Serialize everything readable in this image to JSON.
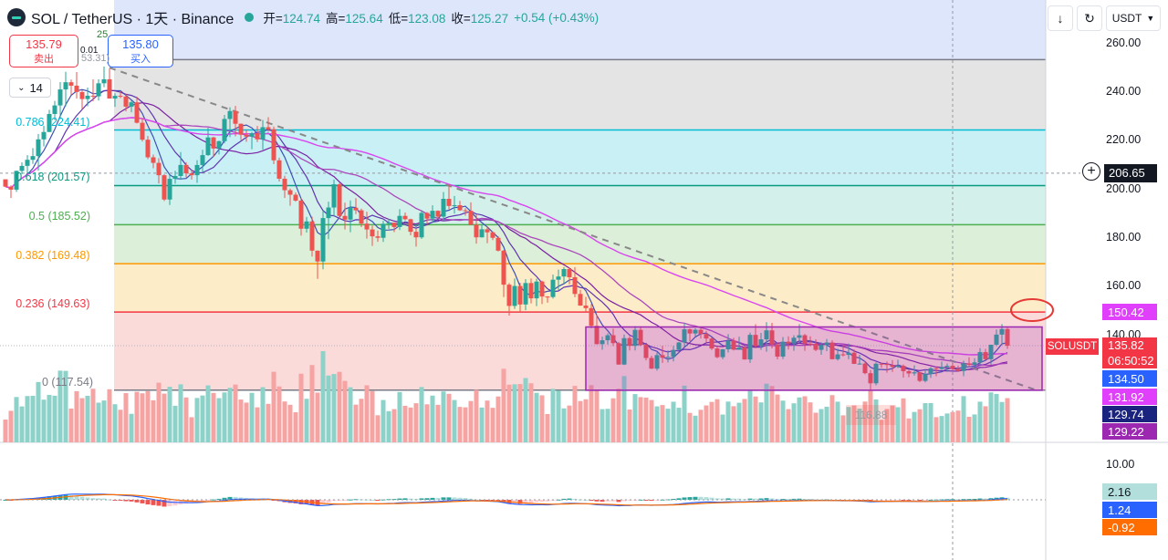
{
  "header": {
    "symbol": "SOL / TetherUS · 1天 · Binance",
    "open_label": "开=",
    "open": "124.74",
    "high_label": "高=",
    "high": "125.64",
    "low_label": "低=",
    "low": "123.08",
    "close_label": "收=",
    "close": "125.27",
    "change": "+0.54 (+0.43%)"
  },
  "trade": {
    "sell_price": "135.79",
    "sell_label": "卖出",
    "spread": "0.01",
    "buy_price": "135.80",
    "buy_label": "买入"
  },
  "interval_value": "14",
  "toolbar": {
    "currency": "USDT"
  },
  "crosshair_price": "206.65",
  "price_axis_labels": [
    "260.00",
    "240.00",
    "220.00",
    "200.00",
    "180.00",
    "160.00",
    "140.00"
  ],
  "macd_axis_labels": [
    "10.00"
  ],
  "price_tags": [
    {
      "text": "150.42",
      "color": "#e040fb"
    },
    {
      "text": "135.82",
      "color": "#f23645"
    },
    {
      "text": "06:50:52",
      "color": "#f23645"
    },
    {
      "text": "134.50",
      "color": "#2962ff"
    },
    {
      "text": "131.92",
      "color": "#e040fb"
    },
    {
      "text": "129.74",
      "color": "#1a237e"
    },
    {
      "text": "129.22",
      "color": "#9c27b0"
    }
  ],
  "symbol_tag": "SOLUSDT",
  "macd_tags": [
    {
      "text": "2.16",
      "color": "#b2dfdb",
      "fg": "#131722"
    },
    {
      "text": "1.24",
      "color": "#2962ff",
      "fg": "#ffffff"
    },
    {
      "text": "-0.92",
      "color": "#ff6d00",
      "fg": "#ffffff"
    }
  ],
  "fib_levels": [
    {
      "label": "0.786 (224.41)",
      "price": 224.41,
      "color": "#00bcd4",
      "fill": "#c9f0f5"
    },
    {
      "label": "0.618 (201.57)",
      "price": 201.57,
      "color": "#089981",
      "fill": "#d3f1ea"
    },
    {
      "label": "0.5 (185.52)",
      "price": 185.52,
      "color": "#4caf50",
      "fill": "#dcefd8"
    },
    {
      "label": "0.382 (169.48)",
      "price": 169.48,
      "color": "#ff9800",
      "fill": "#fdecc8"
    },
    {
      "label": "0.236 (149.63)",
      "price": 149.63,
      "color": "#f23645",
      "fill": "#fbdada"
    },
    {
      "label": "0 (117.54)",
      "price": 117.54,
      "color": "#787b86",
      "fill": "#fbdada"
    }
  ],
  "partial_labels": {
    "top_left_a": "25",
    "top_left_b": "53.31)",
    "low_marker": "116.88"
  },
  "chart_data": {
    "type": "candlestick",
    "price_range": [
      117.54,
      260
    ],
    "colors": {
      "up": "#26a69a",
      "down": "#ef5350"
    },
    "candles": [
      [
        204.15,
        204.04,
        200.81,
        201.14
      ],
      [
        201.14,
        201.64,
        196.47,
        199.9
      ],
      [
        199.9,
        207.74,
        199.01,
        207.6
      ],
      [
        207.6,
        211.12,
        206.3,
        209.66
      ],
      [
        209.66,
        214.08,
        206.79,
        212.16
      ],
      [
        212.16,
        216.95,
        210.48,
        213.68
      ],
      [
        213.68,
        222.79,
        207.75,
        220.56
      ],
      [
        220.56,
        226.08,
        217.61,
        223.58
      ],
      [
        223.58,
        232.69,
        223.56,
        230.98
      ],
      [
        230.98,
        236.35,
        228.37,
        234.49
      ],
      [
        234.49,
        244.1,
        228.92,
        241.06
      ],
      [
        241.06,
        248.31,
        234.09,
        244.02
      ],
      [
        244.02,
        245.1,
        238.9,
        242.6
      ],
      [
        242.6,
        248.21,
        237.29,
        240.0
      ],
      [
        240.0,
        240.76,
        232.99,
        237.11
      ],
      [
        237.11,
        241.81,
        234.17,
        238.48
      ],
      [
        238.48,
        245.2,
        236.15,
        238.23
      ],
      [
        238.23,
        245.19,
        236.51,
        243.58
      ],
      [
        243.58,
        250.47,
        241.97,
        245.23
      ],
      [
        245.23,
        249.67,
        238.44,
        237.31
      ],
      [
        237.31,
        239.47,
        233.94,
        238.43
      ],
      [
        238.43,
        240.36,
        237.5,
        238.14
      ],
      [
        238.14,
        239.38,
        232.03,
        234.0
      ],
      [
        234.0,
        236.45,
        231.67,
        235.76
      ],
      [
        235.76,
        238.07,
        227.07,
        227.37
      ],
      [
        227.37,
        229.32,
        219.68,
        220.42
      ],
      [
        220.42,
        221.92,
        212.44,
        213.18
      ],
      [
        213.18,
        214.32,
        208.7,
        210.9
      ],
      [
        210.9,
        212.87,
        202.46,
        205.82
      ],
      [
        205.82,
        206.24,
        195.23,
        195.84
      ],
      [
        195.84,
        205.95,
        193.62,
        204.34
      ],
      [
        204.34,
        207.66,
        202.34,
        205.51
      ],
      [
        205.51,
        215.32,
        203.97,
        210.05
      ],
      [
        210.05,
        211.17,
        204.93,
        206.59
      ],
      [
        206.59,
        208.05,
        204.06,
        205.83
      ],
      [
        205.83,
        212.01,
        202.7,
        210.02
      ],
      [
        210.02,
        216.25,
        207.03,
        214.08
      ],
      [
        214.08,
        225.37,
        213.78,
        221.35
      ],
      [
        221.35,
        221.63,
        213.34,
        216.81
      ],
      [
        216.81,
        220.06,
        214.33,
        219.8
      ],
      [
        219.8,
        230.61,
        218.92,
        228.94
      ],
      [
        228.94,
        233.75,
        221.46,
        232.19
      ],
      [
        232.19,
        234.28,
        221.81,
        226.96
      ],
      [
        226.96,
        227.06,
        220.31,
        222.47
      ],
      [
        222.47,
        224.41,
        219.54,
        221.69
      ],
      [
        221.69,
        223.63,
        216.49,
        223.05
      ],
      [
        223.05,
        226.05,
        219.47,
        220.56
      ],
      [
        220.56,
        228.49,
        216.3,
        225.55
      ],
      [
        225.55,
        229.64,
        223.7,
        224.68
      ],
      [
        224.68,
        225.81,
        210.4,
        211.95
      ],
      [
        211.95,
        213.03,
        203.24,
        204.39
      ],
      [
        204.39,
        205.58,
        196.52,
        199.67
      ],
      [
        199.67,
        200.39,
        193.28,
        197.82
      ],
      [
        197.82,
        198.79,
        194.97,
        195.39
      ],
      [
        195.39,
        196.38,
        181.0,
        183.85
      ],
      [
        183.85,
        188.68,
        182.28,
        186.85
      ],
      [
        186.85,
        188.77,
        172.37,
        174.84
      ],
      [
        174.84,
        174.91,
        163.28,
        170.4
      ],
      [
        170.4,
        191.33,
        167.2,
        188.22
      ],
      [
        188.22,
        194.94,
        179.57,
        192.56
      ],
      [
        192.56,
        204.03,
        189.05,
        202.1
      ],
      [
        202.1,
        202.62,
        187.82,
        189.1
      ],
      [
        189.1,
        194.53,
        183.54,
        187.6
      ],
      [
        187.6,
        195.48,
        182.43,
        192.47
      ],
      [
        192.47,
        196.42,
        189.85,
        191.42
      ],
      [
        191.42,
        192.08,
        184.5,
        185.95
      ],
      [
        185.95,
        190.86,
        179.81,
        183.55
      ],
      [
        183.55,
        185.09,
        176.78,
        180.72
      ],
      [
        180.72,
        183.07,
        178.46,
        180.13
      ],
      [
        180.13,
        187.09,
        178.44,
        185.88
      ],
      [
        185.88,
        187.91,
        183.73,
        186.33
      ],
      [
        186.33,
        186.41,
        182.47,
        184.56
      ],
      [
        184.56,
        191.86,
        183.29,
        189.12
      ],
      [
        189.12,
        190.53,
        187.28,
        187.75
      ],
      [
        187.75,
        187.98,
        181.16,
        182.6
      ],
      [
        182.6,
        183.85,
        176.53,
        180.31
      ],
      [
        180.31,
        191.36,
        179.7,
        190.34
      ],
      [
        190.34,
        190.71,
        185.51,
        188.0
      ],
      [
        188.0,
        193.46,
        186.33,
        191.21
      ],
      [
        191.21,
        191.41,
        188.12,
        188.8
      ],
      [
        188.8,
        198.92,
        187.22,
        196.13
      ],
      [
        196.13,
        201.9,
        191.83,
        193.19
      ],
      [
        193.19,
        197.29,
        190.11,
        193.5
      ],
      [
        193.5,
        195.23,
        191.16,
        191.42
      ],
      [
        191.42,
        192.28,
        189.22,
        191.2
      ],
      [
        191.2,
        194.66,
        185.44,
        185.45
      ],
      [
        185.45,
        189.65,
        177.72,
        180.32
      ],
      [
        180.32,
        185.55,
        180.2,
        183.62
      ],
      [
        183.62,
        184.64,
        177.93,
        182.36
      ],
      [
        182.36,
        182.69,
        179.2,
        180.11
      ],
      [
        180.11,
        180.78,
        174.51,
        174.84
      ],
      [
        174.84,
        175.09,
        155.78,
        160.87
      ],
      [
        160.87,
        161.51,
        148.2,
        152.15
      ],
      [
        152.15,
        163.42,
        150.88,
        160.32
      ],
      [
        160.32,
        161.64,
        149.9,
        152.74
      ],
      [
        152.74,
        163.18,
        150.39,
        161.55
      ],
      [
        161.55,
        163.42,
        153.19,
        155.26
      ],
      [
        155.26,
        163.32,
        152.06,
        162.16
      ],
      [
        162.16,
        162.5,
        152.92,
        156.0
      ],
      [
        156.0,
        156.14,
        153.47,
        155.81
      ],
      [
        155.81,
        165.04,
        155.14,
        162.91
      ],
      [
        162.91,
        167.06,
        158.63,
        164.23
      ],
      [
        164.23,
        168.12,
        161.28,
        167.29
      ],
      [
        167.29,
        167.83,
        160.97,
        163.93
      ],
      [
        163.93,
        168.06,
        155.73,
        157.07
      ],
      [
        157.07,
        158.78,
        152.22,
        152.28
      ],
      [
        152.28,
        155.87,
        149.63,
        151.24
      ],
      [
        151.24,
        152.91,
        143.0,
        143.98
      ],
      [
        143.98,
        148.51,
        136.33,
        136.44
      ],
      [
        136.44,
        139.54,
        134.12,
        138.04
      ],
      [
        138.04,
        140.86,
        136.22,
        140.1
      ],
      [
        140.1,
        142.8,
        135.66,
        136.85
      ],
      [
        136.85,
        137.38,
        127.99,
        128.07
      ],
      [
        128.07,
        140.4,
        127.86,
        138.9
      ],
      [
        138.9,
        139.72,
        133.83,
        135.74
      ],
      [
        135.74,
        143.85,
        133.87,
        142.32
      ],
      [
        142.32,
        143.72,
        135.61,
        136.14
      ],
      [
        136.14,
        136.85,
        129.77,
        130.76
      ],
      [
        130.76,
        131.69,
        126.27,
        126.37
      ],
      [
        126.37,
        133.04,
        125.56,
        131.94
      ],
      [
        131.94,
        135.78,
        128.76,
        130.86
      ],
      [
        130.86,
        133.92,
        128.95,
        131.23
      ],
      [
        131.23,
        135.68,
        129.35,
        134.07
      ],
      [
        134.07,
        137.37,
        133.86,
        137.12
      ],
      [
        137.12,
        145.06,
        135.32,
        142.53
      ],
      [
        142.53,
        142.82,
        137.73,
        140.82
      ],
      [
        140.82,
        142.92,
        139.62,
        142.33
      ],
      [
        142.33,
        143.07,
        138.75,
        140.59
      ],
      [
        140.59,
        141.85,
        137.01,
        138.76
      ],
      [
        138.76,
        139.15,
        134.05,
        134.67
      ],
      [
        134.67,
        135.76,
        130.67,
        131.1
      ],
      [
        131.1,
        134.49,
        130.23,
        134.33
      ],
      [
        134.33,
        140.55,
        132.99,
        137.9
      ],
      [
        137.9,
        139.05,
        133.86,
        134.2
      ],
      [
        134.2,
        139.52,
        134.1,
        135.1
      ],
      [
        135.1,
        135.8,
        130.04,
        130.16
      ],
      [
        130.16,
        141.22,
        128.74,
        140.26
      ],
      [
        140.26,
        144.61,
        134.83,
        135.65
      ],
      [
        135.65,
        141.07,
        134.07,
        138.42
      ],
      [
        138.42,
        145.48,
        133.33,
        142.11
      ],
      [
        142.11,
        145.19,
        134.69,
        136.26
      ],
      [
        136.26,
        137.07,
        130.19,
        131.33
      ],
      [
        131.33,
        139.39,
        130.35,
        137.45
      ],
      [
        137.45,
        139.65,
        134.24,
        136.7
      ],
      [
        136.7,
        140.12,
        133.7,
        139.08
      ],
      [
        139.08,
        144.66,
        137.24,
        140.1
      ],
      [
        140.1,
        140.62,
        133.71,
        136.67
      ],
      [
        136.67,
        139.65,
        135.59,
        136.53
      ],
      [
        136.53,
        138.44,
        133.59,
        134.1
      ],
      [
        134.1,
        137.24,
        132.09,
        136.11
      ],
      [
        136.11,
        138.56,
        133.56,
        137.11
      ],
      [
        137.11,
        138.02,
        130.15,
        130.27
      ],
      [
        130.27,
        134.57,
        129.7,
        132.24
      ],
      [
        132.24,
        136.02,
        131.43,
        132.05
      ],
      [
        132.05,
        136.67,
        130.25,
        132.92
      ],
      [
        132.92,
        134.27,
        128.26,
        128.36
      ],
      [
        128.36,
        132.09,
        127.99,
        128.47
      ],
      [
        128.47,
        129.55,
        124.05,
        124.53
      ],
      [
        124.53,
        125.82,
        117.26,
        120.36
      ],
      [
        120.36,
        128.96,
        119.54,
        128.4
      ],
      [
        128.4,
        128.78,
        126.79,
        128.36
      ],
      [
        128.36,
        129.3,
        124.73,
        127.89
      ],
      [
        127.89,
        129.86,
        125.05,
        127.13
      ],
      [
        127.13,
        130.01,
        126.62,
        127.53
      ],
      [
        127.53,
        128.09,
        122.73,
        125.35
      ],
      [
        125.35,
        125.84,
        122.84,
        124.41
      ],
      [
        124.41,
        127.71,
        123.5,
        124.89
      ],
      [
        124.89,
        125.06,
        120.87,
        121.35
      ],
      [
        121.35,
        126.02,
        120.72,
        124.16
      ],
      [
        124.16,
        127.04,
        122.61,
        126.52
      ],
      [
        126.52,
        127.27,
        123.26,
        126.23
      ],
      [
        126.23,
        129.32,
        125.83,
        127.05
      ],
      [
        127.05,
        128.5,
        125.08,
        127.55
      ],
      [
        127.55,
        128.63,
        125.61,
        126.29
      ],
      [
        126.29,
        127.65,
        125.06,
        125.41
      ],
      [
        125.41,
        129.64,
        123.27,
        128.53
      ],
      [
        128.53,
        131.06,
        127.22,
        127.93
      ],
      [
        127.93,
        130.68,
        126.98,
        128.97
      ],
      [
        128.97,
        134.85,
        127.92,
        133.17
      ],
      [
        133.17,
        134.53,
        129.95,
        130.27
      ],
      [
        130.27,
        136.21,
        128.05,
        136.21
      ],
      [
        136.21,
        142.47,
        135.67,
        140.37
      ],
      [
        140.37,
        144.69,
        136.38,
        142.64
      ],
      [
        142.64,
        143.15,
        134.49,
        135.8
      ]
    ]
  }
}
